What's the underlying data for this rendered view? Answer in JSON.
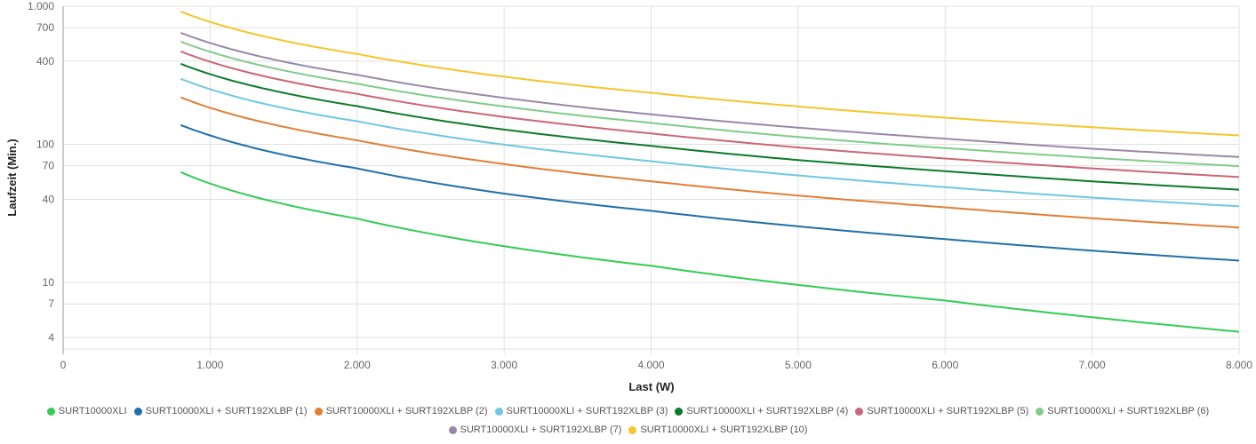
{
  "chart_data": {
    "type": "line",
    "title": "",
    "xlabel": "Last (W)",
    "ylabel": "Laufzeit (Min.)",
    "xlim": [
      0,
      8000
    ],
    "ylim": [
      3.3,
      1000
    ],
    "yscale": "log",
    "grid": true,
    "legend_position": "bottom",
    "x_ticks": [
      0,
      1000,
      2000,
      3000,
      4000,
      5000,
      6000,
      7000,
      8000
    ],
    "x_tick_labels": [
      "0",
      "1.000",
      "2.000",
      "3.000",
      "4.000",
      "5.000",
      "6.000",
      "7.000",
      "8.000"
    ],
    "y_ticks": [
      4,
      7,
      10,
      40,
      70,
      100,
      400,
      700,
      1000
    ],
    "y_tick_labels": [
      "4",
      "7",
      "10",
      "40",
      "70",
      "100",
      "400",
      "700",
      "1.000"
    ],
    "x": [
      800,
      1000,
      1500,
      2000,
      3000,
      4000,
      5000,
      6000,
      7000,
      8000
    ],
    "series": [
      {
        "name": "SURT10000XLI",
        "color": "#33cc55",
        "values": [
          63,
          52,
          37,
          29,
          18.3,
          13.2,
          9.6,
          7.4,
          5.6,
          4.4
        ]
      },
      {
        "name": "SURT10000XLI + SURT192XLBP (1)",
        "color": "#1f6fa8",
        "values": [
          138,
          116,
          84,
          67,
          44,
          33,
          25.5,
          20.6,
          17,
          14.4
        ]
      },
      {
        "name": "SURT10000XLI + SURT192XLBP (2)",
        "color": "#e07f36",
        "values": [
          219,
          184,
          134,
          107,
          72,
          54,
          42.6,
          35,
          29.2,
          25
        ]
      },
      {
        "name": "SURT10000XLI + SURT192XLBP (3)",
        "color": "#6ec8e0",
        "values": [
          298,
          251,
          183,
          147,
          99.5,
          75.5,
          59.6,
          49,
          41.2,
          35.6
        ]
      },
      {
        "name": "SURT10000XLI + SURT192XLBP (4)",
        "color": "#0b7a2a",
        "values": [
          383,
          322,
          236,
          189,
          128,
          97.5,
          77,
          64,
          54,
          47
        ]
      },
      {
        "name": "SURT10000XLI + SURT192XLBP (5)",
        "color": "#cc6677",
        "values": [
          471,
          396,
          290,
          232,
          158,
          120,
          95,
          79,
          67,
          58
        ]
      },
      {
        "name": "SURT10000XLI + SURT192XLBP (6)",
        "color": "#80cc88",
        "values": [
          554,
          468,
          343,
          275,
          188,
          143,
          113,
          94,
          80,
          69.5
        ]
      },
      {
        "name": "SURT10000XLI + SURT192XLBP (7)",
        "color": "#9988aa",
        "values": [
          642,
          542,
          397,
          319,
          217,
          165,
          132,
          110,
          93,
          81
        ]
      },
      {
        "name": "SURT10000XLI + SURT192XLBP (10)",
        "color": "#f5c52a",
        "values": [
          915,
          770,
          563,
          451,
          309,
          236,
          188,
          156,
          133,
          116
        ]
      }
    ],
    "legend_rows": [
      [
        0,
        1,
        2,
        3,
        4,
        5,
        6
      ],
      [
        7,
        8
      ]
    ]
  }
}
